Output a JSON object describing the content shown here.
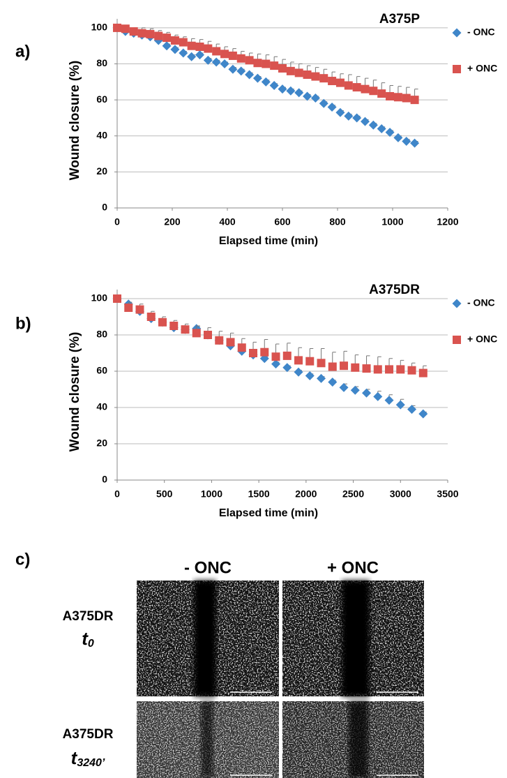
{
  "chart_data": [
    {
      "type": "scatter",
      "label": "a)",
      "title": "A375P",
      "xlabel": "Elapsed time (min)",
      "ylabel": "Wound  closure  (%)",
      "x": [
        0,
        30,
        60,
        90,
        120,
        150,
        180,
        210,
        240,
        270,
        300,
        330,
        360,
        390,
        420,
        450,
        480,
        510,
        540,
        570,
        600,
        630,
        660,
        690,
        720,
        750,
        780,
        810,
        840,
        870,
        900,
        930,
        960,
        990,
        1020,
        1050,
        1080
      ],
      "series": [
        {
          "name": "- ONC",
          "color": "#3f86c9",
          "marker": "diamond",
          "values": [
            100,
            98,
            97,
            96,
            95,
            93,
            90,
            88,
            86,
            84,
            85,
            82,
            81,
            80,
            77,
            76,
            74,
            72,
            70,
            68,
            66,
            65,
            64,
            62,
            61,
            58,
            56,
            53,
            51,
            50,
            48,
            46,
            44,
            42,
            39,
            37,
            36
          ],
          "errors": [
            1,
            1,
            1,
            1,
            1,
            1,
            1,
            1,
            1,
            1,
            1,
            1,
            1,
            1,
            1,
            1,
            1,
            1,
            1,
            1,
            1,
            1,
            1,
            1,
            1,
            1,
            1,
            1,
            1,
            1,
            1,
            1,
            1,
            1,
            1,
            1,
            1
          ]
        },
        {
          "name": "+ ONC",
          "color": "#d9534f",
          "marker": "square",
          "values": [
            100,
            99.5,
            98,
            97,
            96.5,
            95.5,
            94.5,
            93,
            92,
            90,
            89.5,
            88.5,
            87,
            85.5,
            84.5,
            83,
            82,
            80.5,
            80,
            79,
            77.5,
            76,
            75,
            74,
            73,
            72,
            70.5,
            69.5,
            68,
            67,
            66,
            65,
            63.5,
            62,
            61.5,
            61,
            60
          ],
          "errors": [
            2,
            2,
            2,
            3,
            3,
            3,
            3,
            3,
            3,
            4,
            4,
            4,
            4,
            4,
            4,
            4,
            4,
            5,
            5,
            5,
            5,
            5,
            5,
            5,
            5,
            5,
            5,
            5,
            6,
            6,
            6,
            6,
            6,
            6,
            6,
            6,
            6
          ]
        }
      ],
      "xlim": [
        0,
        1200
      ],
      "xticks": [
        0,
        200,
        400,
        600,
        800,
        1000,
        1200
      ],
      "ylim": [
        0,
        105
      ],
      "yticks": [
        0,
        20,
        40,
        60,
        80,
        100
      ],
      "grid": true
    },
    {
      "type": "scatter",
      "label": "b)",
      "title": "A375DR",
      "xlabel": "Elapsed time (min)",
      "ylabel": "Wound  closure  (%)",
      "x": [
        0,
        120,
        240,
        360,
        480,
        600,
        720,
        840,
        960,
        1080,
        1200,
        1320,
        1440,
        1560,
        1680,
        1800,
        1920,
        2040,
        2160,
        2280,
        2400,
        2520,
        2640,
        2760,
        2880,
        3000,
        3120,
        3240
      ],
      "series": [
        {
          "name": "- ONC",
          "color": "#3f86c9",
          "marker": "diamond",
          "values": [
            100,
            97,
            93,
            89,
            87,
            84,
            83,
            83.5,
            80,
            77,
            74,
            71,
            69,
            67,
            64,
            62,
            59.5,
            57.5,
            56,
            54,
            51,
            49.5,
            48,
            46,
            44,
            41.5,
            39,
            36.5
          ],
          "errors": [
            1,
            1,
            1,
            1,
            1,
            1,
            1,
            1,
            1,
            1,
            1,
            1,
            1,
            1,
            1,
            1,
            1,
            1,
            1,
            1,
            2,
            2,
            2,
            3,
            3,
            3,
            2,
            1
          ]
        },
        {
          "name": "+ ONC",
          "color": "#d9534f",
          "marker": "square",
          "values": [
            100,
            95,
            94,
            90,
            87,
            85,
            83,
            81,
            80,
            77,
            76,
            73,
            70,
            70.5,
            68,
            68.5,
            66,
            65.5,
            64.5,
            62.5,
            63,
            62,
            61.5,
            61,
            61,
            61,
            60.5,
            59
          ],
          "errors": [
            0,
            3,
            3,
            3,
            3,
            3,
            3,
            4,
            4,
            5,
            5,
            5,
            6,
            7,
            7,
            7,
            7,
            7,
            8,
            8,
            8,
            7,
            7,
            7,
            6,
            5,
            4,
            4
          ]
        }
      ],
      "xlim": [
        0,
        3500
      ],
      "xticks": [
        0,
        500,
        1000,
        1500,
        2000,
        2500,
        3000,
        3500
      ],
      "ylim": [
        0,
        105
      ],
      "yticks": [
        0,
        20,
        40,
        60,
        80,
        100
      ],
      "grid": true
    }
  ],
  "panel_c": {
    "label": "c)",
    "columns": [
      "- ONC",
      "+ ONC"
    ],
    "rows": [
      {
        "line": "A375DR",
        "time": "t",
        "subscript": "0"
      },
      {
        "line": "A375DR",
        "time": "t",
        "subscript": "3240’"
      }
    ]
  }
}
